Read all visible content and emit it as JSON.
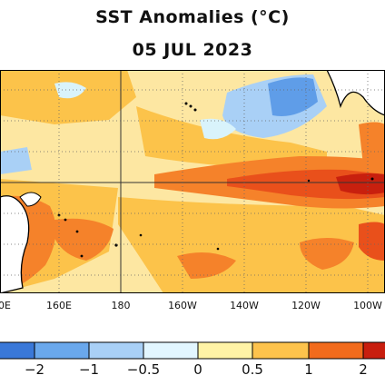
{
  "title": "SST Anomalies (°C)",
  "date": "05 JUL 2023",
  "x_ticks": [
    "0E",
    "160E",
    "180",
    "160W",
    "140W",
    "120W",
    "100W"
  ],
  "colorbar": {
    "bins": [
      {
        "color": "#3a78d8"
      },
      {
        "color": "#6aa8ec"
      },
      {
        "color": "#a9d0f6"
      },
      {
        "color": "#e2f6ff"
      },
      {
        "color": "#fff3a6"
      },
      {
        "color": "#fdc34c"
      },
      {
        "color": "#f26b1c"
      },
      {
        "color": "#c81e0e"
      }
    ],
    "tick_labels": [
      "−2",
      "−1",
      "−0.5",
      "0",
      "0.5",
      "1",
      "2"
    ]
  },
  "colors": {
    "land": "#ffffff",
    "coast": "#000000",
    "grid": "#333333",
    "warm_light": "#fde7a2",
    "warm": "#fcc34a",
    "orange": "#f5822a",
    "red_orange": "#e9501b",
    "hot": "#c8200e",
    "cool_light": "#d9f3fb",
    "cool": "#a9d0f6",
    "blue": "#5f9de8"
  }
}
